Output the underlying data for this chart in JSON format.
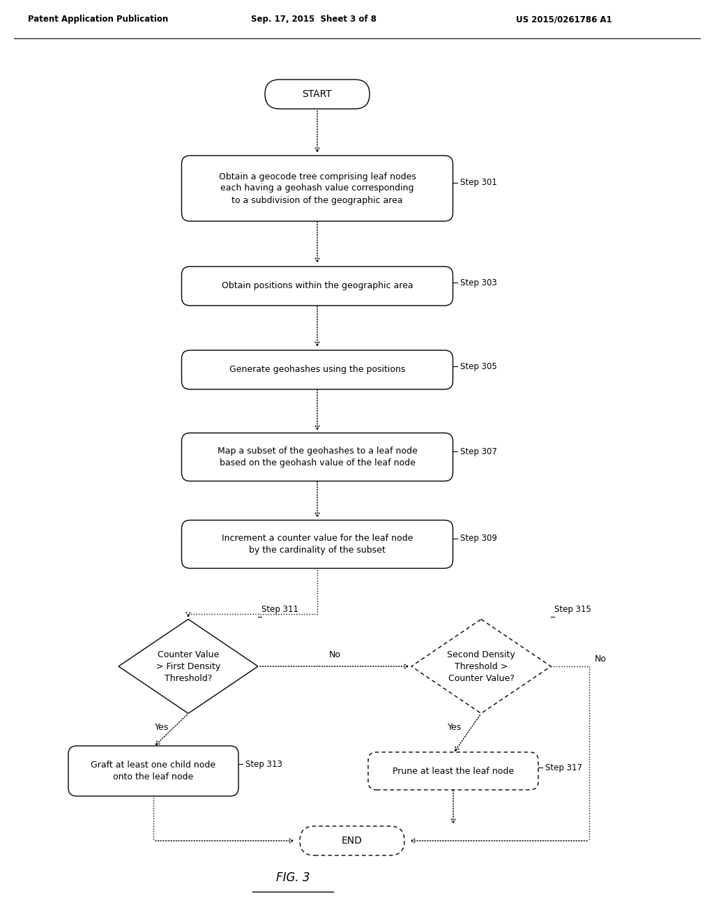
{
  "bg_color": "#ffffff",
  "text_color": "#000000",
  "header_left": "Patent Application Publication",
  "header_mid": "Sep. 17, 2015  Sheet 3 of 8",
  "header_right": "US 2015/0261786 A1",
  "figure_label": "FIG. 3",
  "start_label": "START",
  "end_label": "END",
  "page_width": 10.24,
  "page_height": 13.2
}
